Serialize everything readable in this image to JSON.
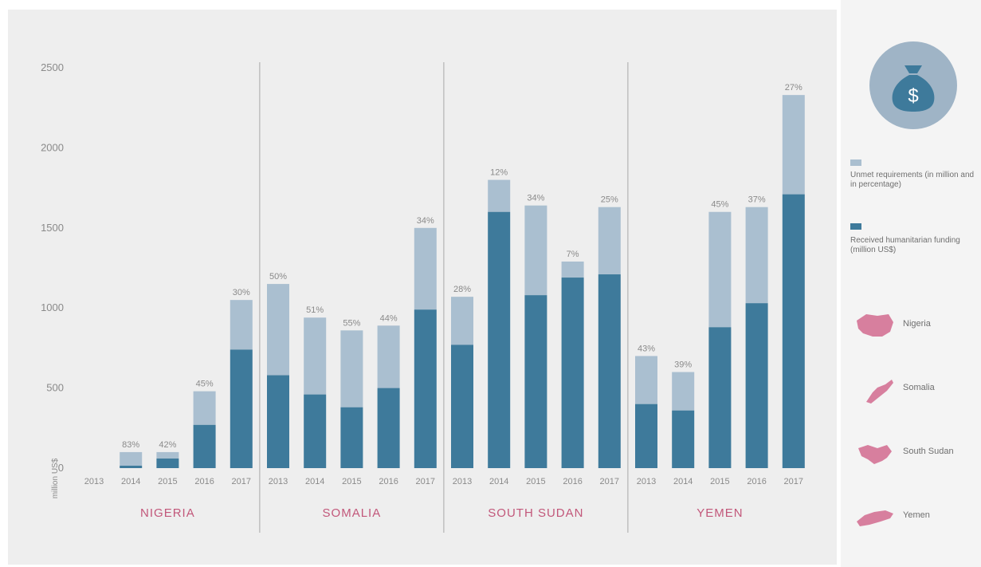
{
  "chart_data": {
    "type": "bar",
    "stacked": true,
    "ylabel": "million US$",
    "ylim": [
      0,
      2500
    ],
    "yticks": [
      0,
      500,
      1000,
      1500,
      2000,
      2500
    ],
    "groups": [
      {
        "name": "NIGERIA",
        "categories": [
          "2013",
          "2014",
          "2015",
          "2016",
          "2017"
        ],
        "total": [
          0,
          100,
          100,
          480,
          1050
        ],
        "funded": [
          0,
          15,
          60,
          270,
          740
        ],
        "labels": [
          "",
          "83%",
          "42%",
          "45%",
          "30%"
        ]
      },
      {
        "name": "SOMALIA",
        "categories": [
          "2013",
          "2014",
          "2015",
          "2016",
          "2017"
        ],
        "total": [
          1150,
          940,
          860,
          890,
          1500
        ],
        "funded": [
          580,
          460,
          380,
          500,
          990
        ],
        "labels": [
          "50%",
          "51%",
          "55%",
          "44%",
          "34%"
        ]
      },
      {
        "name": "SOUTH SUDAN",
        "categories": [
          "2013",
          "2014",
          "2015",
          "2016",
          "2017"
        ],
        "total": [
          1070,
          1800,
          1640,
          1290,
          1630
        ],
        "funded": [
          770,
          1600,
          1080,
          1190,
          1210
        ],
        "labels": [
          "28%",
          "12%",
          "34%",
          "7%",
          "25%"
        ]
      },
      {
        "name": "YEMEN",
        "categories": [
          "2013",
          "2014",
          "2015",
          "2016",
          "2017"
        ],
        "total": [
          700,
          600,
          1600,
          1630,
          2330
        ],
        "funded": [
          400,
          360,
          880,
          1030,
          1710
        ],
        "labels": [
          "43%",
          "39%",
          "45%",
          "37%",
          "27%"
        ]
      }
    ],
    "legend": {
      "placement": "right",
      "entries": [
        {
          "name": "Unmet requirements (in million and in percentage)",
          "color": "#aabfd0"
        },
        {
          "name": "Received humanitarian funding (million US$)",
          "color": "#3e7a9b"
        }
      ]
    },
    "grid": false
  },
  "colors": {
    "unmet": "#aabfd0",
    "funded": "#3e7a9b",
    "background": "#eeeeee",
    "country_label": "#c2577a",
    "divider": "#a9a9a9"
  },
  "legend_panel": {
    "icon": "money-bag-icon",
    "countries": [
      {
        "name": "Nigeria",
        "icon": "nigeria-map-icon"
      },
      {
        "name": "Somalia",
        "icon": "somalia-map-icon"
      },
      {
        "name": "South Sudan",
        "icon": "south-sudan-map-icon"
      },
      {
        "name": "Yemen",
        "icon": "yemen-map-icon"
      }
    ]
  }
}
